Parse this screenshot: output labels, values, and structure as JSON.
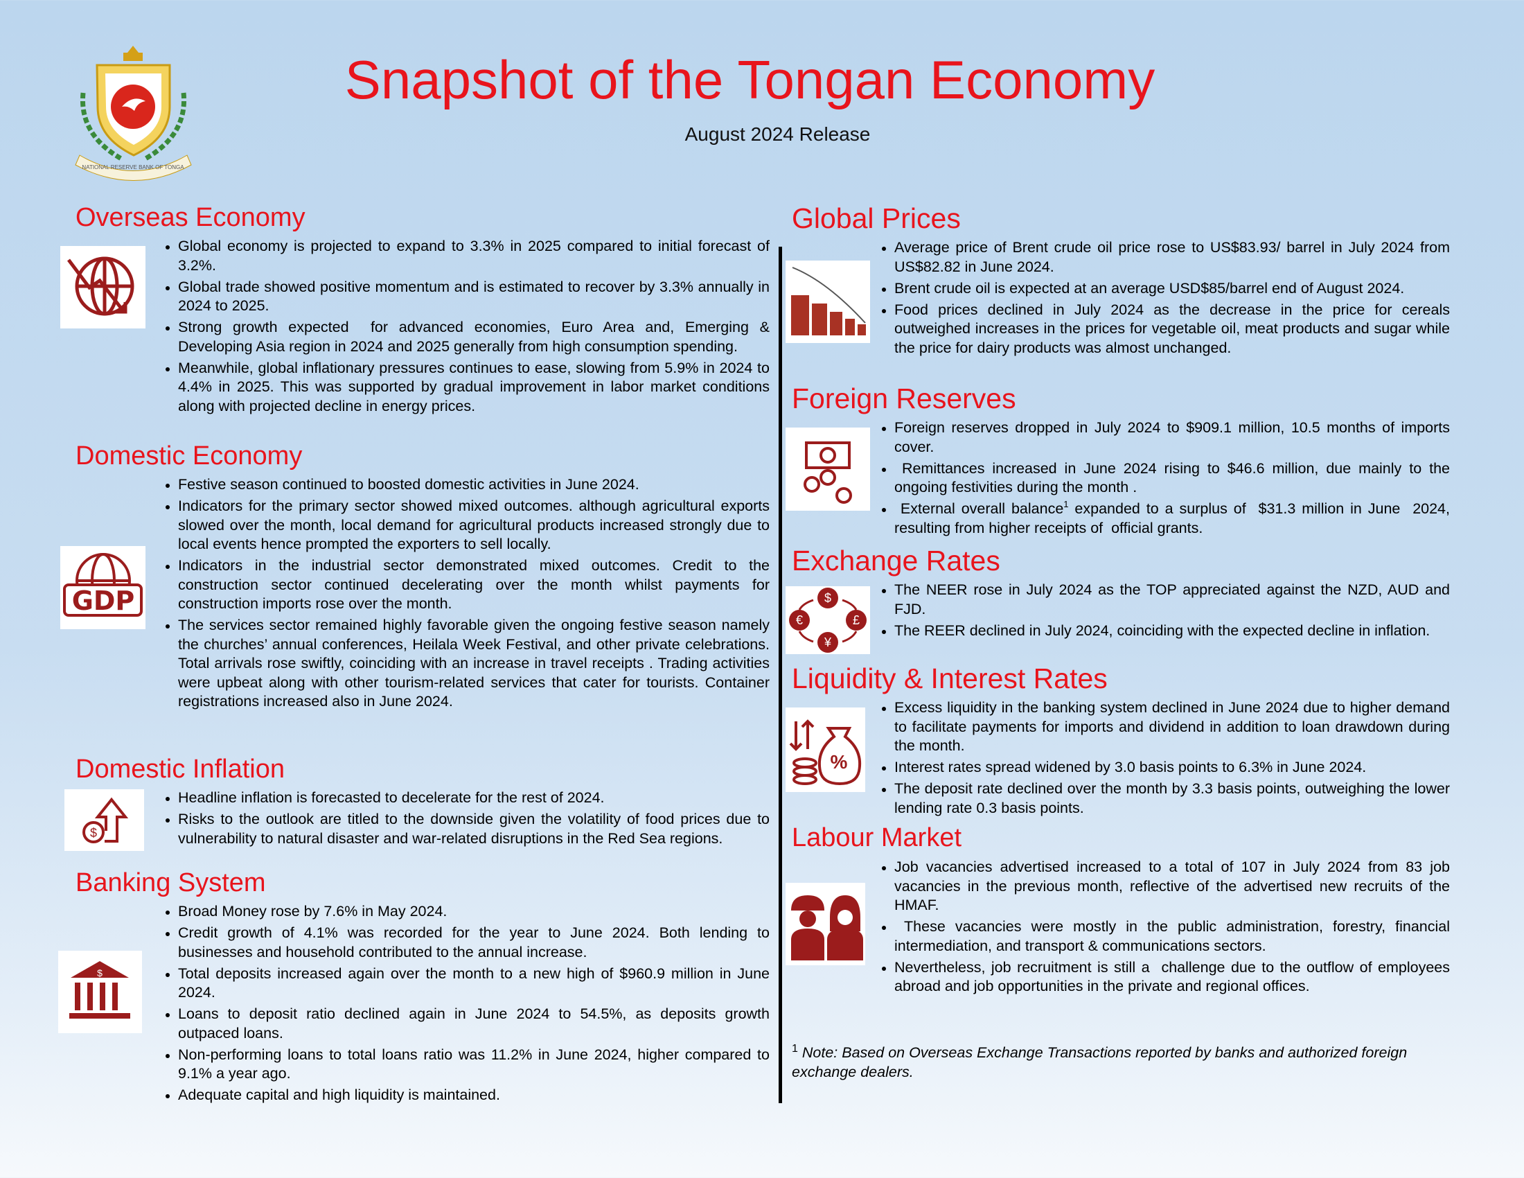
{
  "header": {
    "title": "Snapshot of the Tongan Economy",
    "subtitle": "August 2024 Release",
    "logo_text": "NATIONAL RESERVE BANK OF TONGA"
  },
  "left_column": [
    {
      "heading": "Overseas Economy",
      "bullets": [
        "Global economy is projected to expand to 3.3% in 2025 compared to initial forecast of 3.2%.",
        "Global trade showed positive momentum and is estimated to recover by 3.3% annually in 2024 to 2025.",
        "Strong growth expected  for advanced economies, Euro Area and, Emerging & Developing Asia region in 2024 and 2025 generally from high consumption spending.",
        "Meanwhile, global inflationary pressures continues to ease, slowing from 5.9% in 2024 to 4.4% in 2025. This was supported by gradual improvement in labor market conditions  along with projected decline in energy prices."
      ]
    },
    {
      "heading": "Domestic Economy",
      "bullets": [
        "Festive season continued to boosted domestic activities in June 2024.",
        "Indicators for the primary sector showed mixed outcomes. although agricultural exports slowed over the month, local demand for agricultural products increased strongly due to local events hence prompted the exporters to sell locally.",
        "Indicators in the industrial sector demonstrated mixed outcomes. Credit to the construction sector continued decelerating over the month whilst payments for construction imports rose over the month.",
        "The services sector remained highly favorable given the ongoing festive season namely the churches’ annual conferences, Heilala Week Festival, and other private celebrations. Total arrivals rose swiftly, coinciding with an increase in travel receipts . Trading activities were upbeat along with other tourism-related services that cater for tourists. Container registrations increased also in June 2024."
      ]
    },
    {
      "heading": "Domestic Inflation",
      "bullets": [
        "Headline inflation is forecasted to decelerate for the rest of 2024.",
        "Risks to the outlook are titled to the downside given the volatility of food prices due to vulnerability to natural disaster and war-related disruptions in the Red Sea regions."
      ]
    },
    {
      "heading": "Banking System",
      "bullets": [
        "Broad Money rose by 7.6% in May 2024.",
        "Credit growth of 4.1% was recorded for the year to June 2024. Both lending to businesses and household contributed to the annual increase.",
        "Total deposits increased again over the month to a new high of $960.9 million in June 2024.",
        "Loans to deposit ratio declined again in June 2024 to 54.5%, as deposits growth outpaced loans.",
        "Non-performing loans to total loans ratio was 11.2% in June 2024, higher compared to 9.1% a year ago.",
        "Adequate capital and high liquidity is maintained."
      ]
    }
  ],
  "right_column": [
    {
      "heading": "Global Prices",
      "bullets": [
        "Average price of Brent crude oil price rose to US$83.93/ barrel in July 2024 from US$82.82 in June 2024.",
        "Brent crude oil is expected at an average USD$85/barrel end of August 2024.",
        "Food prices declined in July 2024 as the decrease in the price for cereals outweighed increases in the prices for vegetable oil, meat products and sugar while the price for dairy products was almost unchanged."
      ]
    },
    {
      "heading": "Foreign Reserves",
      "bullets": [
        "Foreign reserves dropped in July 2024 to $909.1 million, 10.5 months of imports cover.",
        " Remittances increased in June 2024 rising to $46.6 million, due mainly to the ongoing festivities during the month .",
        {
          "text": " External overall balance",
          "sup": "1",
          "text_after": " expanded to a surplus of  $31.3 million in June  2024, resulting from higher receipts of  official grants."
        }
      ]
    },
    {
      "heading": "Exchange Rates",
      "bullets": [
        "The NEER rose in July 2024 as the TOP appreciated against the NZD, AUD and FJD.",
        "The REER declined in July 2024, coinciding with the expected decline in inflation."
      ]
    },
    {
      "heading": "Liquidity & Interest Rates",
      "bullets": [
        "Excess liquidity in the banking system declined in June 2024 due to higher demand to facilitate payments for imports and dividend in addition to loan drawdown during the month.",
        "Interest rates spread widened by 3.0 basis points to 6.3% in June 2024.",
        "The deposit rate declined over the month by 3.3 basis points, outweighing the lower lending rate 0.3 basis points."
      ]
    },
    {
      "heading": "Labour Market",
      "bullets": [
        "Job vacancies advertised increased to a total of 107 in July 2024 from 83 job vacancies in the previous month, reflective of the advertised new recruits of the HMAF.",
        " These vacancies were mostly in the public administration, forestry, financial intermediation, and transport & communications sectors.",
        "Nevertheless, job recruitment is still a  challenge due to the outflow of employees abroad and job opportunities in the private and regional offices."
      ]
    }
  ],
  "footnote": {
    "marker": "1",
    "text": "Note: Based on Overseas Exchange Transactions reported by banks and authorized foreign exchange dealers."
  }
}
